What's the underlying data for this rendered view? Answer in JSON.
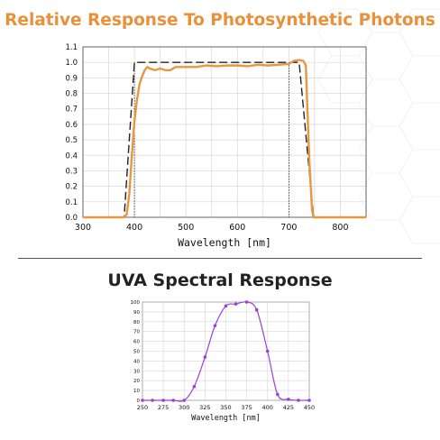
{
  "titles": {
    "top": "Relative Response To Photosynthetic Photons",
    "bottom": "UVA Spectral Response"
  },
  "colors": {
    "title_orange": "#E8913A",
    "measured_orange": "#E8973F",
    "ideal_dash": "#222222",
    "uva_purple": "#9B3FD6",
    "grid": "#D6D6D6"
  },
  "chart_data": [
    {
      "type": "line",
      "title": "Relative Response To Photosynthetic Photons",
      "xlabel": "Wavelength [nm]",
      "ylabel": "",
      "xlim": [
        300,
        850
      ],
      "ylim": [
        0,
        1.1
      ],
      "xticks": [
        300,
        400,
        500,
        600,
        700,
        800
      ],
      "yticks": [
        0.0,
        0.1,
        0.2,
        0.3,
        0.4,
        0.5,
        0.6,
        0.7,
        0.8,
        0.9,
        1.0,
        1.1
      ],
      "grid": true,
      "vertical_reference_lines": [
        400,
        700
      ],
      "series": [
        {
          "style": "dashed",
          "x": [
            300,
            380,
            400,
            720,
            748,
            850
          ],
          "y": [
            0,
            0,
            1.0,
            1.0,
            0,
            0
          ]
        },
        {
          "style": "solid",
          "x": [
            300,
            380,
            385,
            390,
            395,
            400,
            405,
            410,
            415,
            420,
            425,
            430,
            440,
            450,
            460,
            470,
            480,
            500,
            520,
            540,
            560,
            580,
            600,
            620,
            640,
            660,
            680,
            700,
            710,
            720,
            728,
            733,
            736,
            740,
            745,
            748,
            760,
            800,
            850
          ],
          "y": [
            0.0,
            0.0,
            0.02,
            0.15,
            0.4,
            0.62,
            0.76,
            0.86,
            0.91,
            0.95,
            0.97,
            0.96,
            0.95,
            0.96,
            0.95,
            0.95,
            0.97,
            0.97,
            0.97,
            0.98,
            0.975,
            0.98,
            0.98,
            0.975,
            0.985,
            0.98,
            0.985,
            0.99,
            1.01,
            1.015,
            1.01,
            0.98,
            0.7,
            0.35,
            0.05,
            0.0,
            0.0,
            0.0,
            0.0
          ]
        }
      ]
    },
    {
      "type": "line",
      "title": "UVA Spectral Response",
      "xlabel": "Wavelength [nm]",
      "ylabel": "",
      "xlim": [
        250,
        450
      ],
      "ylim": [
        0,
        100
      ],
      "xticks": [
        250,
        275,
        300,
        325,
        350,
        375,
        400,
        425,
        450
      ],
      "yticks": [
        0,
        10,
        20,
        30,
        40,
        50,
        60,
        70,
        80,
        90,
        100
      ],
      "grid": true,
      "series": [
        {
          "x": [
            250,
            262,
            275,
            287,
            300,
            312,
            325,
            337,
            350,
            362,
            375,
            387,
            400,
            412,
            425,
            437,
            450
          ],
          "y": [
            0,
            0,
            0,
            0,
            0,
            14,
            44,
            76,
            96,
            98,
            100,
            92,
            50,
            6,
            1,
            0,
            0
          ]
        }
      ]
    }
  ]
}
